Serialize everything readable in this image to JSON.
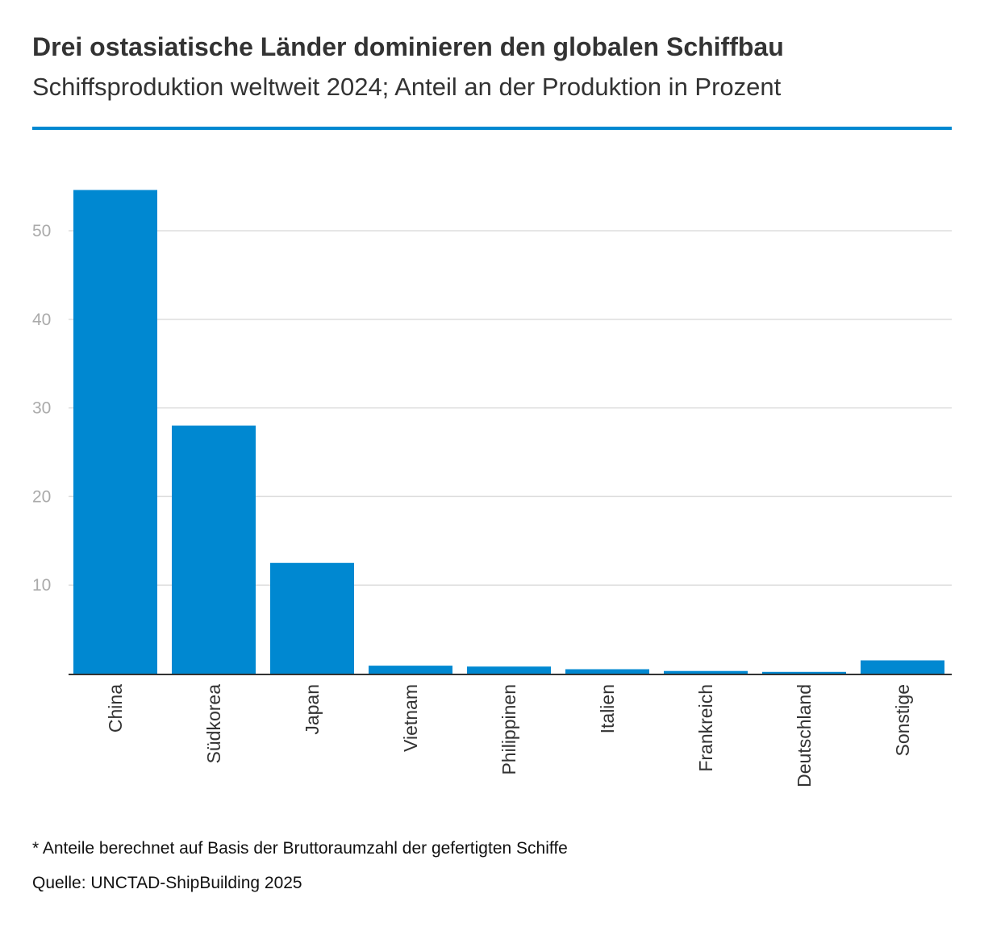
{
  "header": {
    "title": "Drei ostasiatische Länder dominieren den globalen Schiffbau",
    "subtitle": "Schiffsproduktion weltweit 2024; Anteil an der Produktion in Prozent"
  },
  "footer": {
    "footnote": "* Anteile berechnet auf Basis der Bruttoraumzahl der gefertigten Schiffe",
    "source": "Quelle: UNCTAD-ShipBuilding 2025"
  },
  "colors": {
    "bar": "#0088d1",
    "rule": "#0088d1",
    "grid": "#dddddd",
    "axis": "#333333"
  },
  "chart_data": {
    "type": "bar",
    "title": "Drei ostasiatische Länder dominieren den globalen Schiffbau",
    "subtitle": "Schiffsproduktion weltweit 2024; Anteil an der Produktion in Prozent",
    "xlabel": "",
    "ylabel": "",
    "categories": [
      "China",
      "Südkorea",
      "Japan",
      "Vietnam",
      "Philippinen",
      "Italien",
      "Frankreich",
      "Deutschland",
      "Sonstige"
    ],
    "values": [
      54.6,
      28.0,
      12.5,
      0.9,
      0.8,
      0.5,
      0.3,
      0.2,
      1.5
    ],
    "ylim": [
      0,
      55
    ],
    "yticks": [
      10,
      20,
      30,
      40,
      50
    ],
    "grid": true,
    "legend": "none"
  }
}
